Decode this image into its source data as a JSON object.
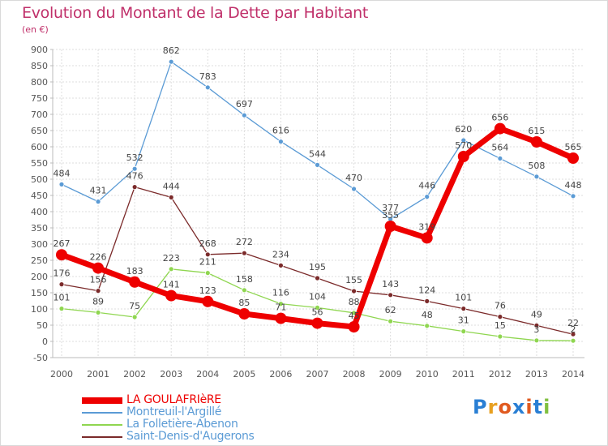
{
  "title": "Evolution du Montant de la Dette par Habitant",
  "subtitle": "(en €)",
  "logo": {
    "text": "Proxiti",
    "colors": [
      "#2a7fd4",
      "#e8a020",
      "#e05a20",
      "#2a7fd4",
      "#e05a20",
      "#2a7fd4",
      "#80c040"
    ]
  },
  "chart_data": {
    "type": "line",
    "title": "Evolution du Montant de la Dette par Habitant",
    "ylabel": "(en €)",
    "xlabel": "",
    "ylim": [
      -50,
      900
    ],
    "yticks": [
      "-50",
      "0",
      "50",
      "100",
      "150",
      "200",
      "250",
      "300",
      "350",
      "400",
      "450",
      "500",
      "550",
      "600",
      "650",
      "700",
      "750",
      "800",
      "850",
      "900"
    ],
    "grid": true,
    "legend_position": "bottom-left",
    "x": [
      "2000",
      "2001",
      "2002",
      "2003",
      "2004",
      "2005",
      "2006",
      "2007",
      "2008",
      "2009",
      "2010",
      "2011",
      "2012",
      "2013",
      "2014"
    ],
    "series": [
      {
        "name": "LA GOULAFRIèRE",
        "color": "#ee0000",
        "values": [
          267,
          226,
          183,
          141,
          123,
          85,
          71,
          56,
          45,
          355,
          319,
          570,
          656,
          615,
          565
        ],
        "labels": [
          "267",
          "226",
          "183",
          "141",
          "123",
          "85",
          "71",
          "56",
          "45",
          "355",
          "319",
          "570",
          "656",
          "615",
          "565"
        ]
      },
      {
        "name": "Montreuil-l'Argillé",
        "color": "#5b9bd5",
        "values": [
          484,
          431,
          532,
          862,
          783,
          697,
          616,
          544,
          470,
          377,
          446,
          620,
          564,
          508,
          448
        ],
        "labels": [
          "484",
          "431",
          "532",
          "862",
          "783",
          "697",
          "616",
          "544",
          "470",
          "377",
          "446",
          "620",
          "564",
          "508",
          "448"
        ]
      },
      {
        "name": "La Folletière-Abenon",
        "color": "#8fd650",
        "values": [
          101,
          89,
          75,
          223,
          211,
          158,
          116,
          104,
          88,
          62,
          48,
          31,
          15,
          3,
          2
        ],
        "labels": [
          "101",
          "89",
          "75",
          "223",
          "211",
          "158",
          "116",
          "104",
          "88",
          "62",
          "48",
          "31",
          "15",
          "3",
          "2"
        ]
      },
      {
        "name": "Saint-Denis-d'Augerons",
        "color": "#7b2a2a",
        "values": [
          176,
          156,
          476,
          444,
          268,
          272,
          234,
          195,
          155,
          143,
          124,
          101,
          76,
          49,
          22
        ],
        "labels": [
          "176",
          "156",
          "476",
          "444",
          "268",
          "272",
          "234",
          "195",
          "155",
          "143",
          "124",
          "101",
          "76",
          "49",
          "22"
        ]
      }
    ]
  }
}
